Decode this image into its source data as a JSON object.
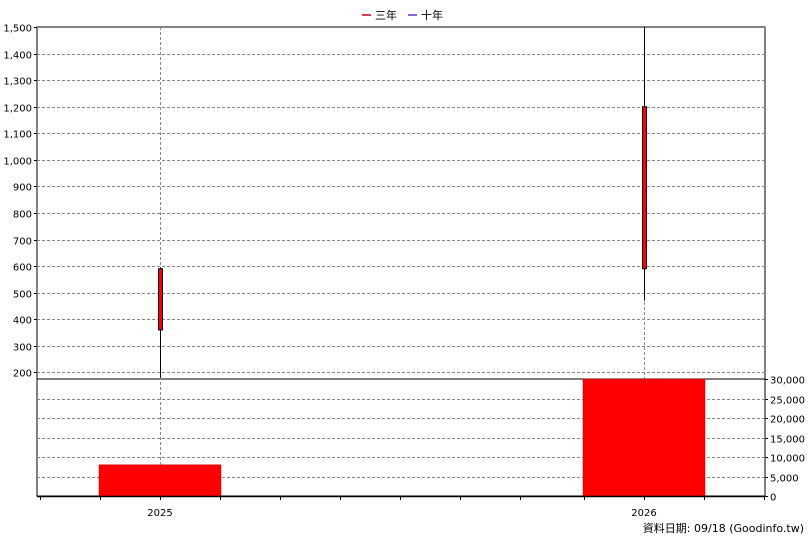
{
  "legend": [
    {
      "label": "三年",
      "color": "#cc0000"
    },
    {
      "label": "十年",
      "color": "#6633cc"
    }
  ],
  "footer": "資料日期: 09/18  (Goodinfo.tw)",
  "chart_data": [
    {
      "type": "candlestick",
      "categories": [
        "2025",
        "2026"
      ],
      "ylim": [
        175,
        1500
      ],
      "yticks": [
        "200",
        "300",
        "400",
        "500",
        "600",
        "700",
        "800",
        "900",
        "1,000",
        "1,100",
        "1,200",
        "1,300",
        "1,400",
        "1,500"
      ],
      "yvalues": [
        200,
        300,
        400,
        500,
        600,
        700,
        800,
        900,
        1000,
        1100,
        1200,
        1300,
        1400,
        1500
      ],
      "grid": true,
      "series": [
        {
          "category": "2025",
          "open": 360,
          "close": 590,
          "low": 180,
          "high": 595,
          "color": "#ff0000"
        },
        {
          "category": "2026",
          "open": 590,
          "close": 1200,
          "low": 470,
          "high": 1500,
          "color": "#ff0000"
        }
      ]
    },
    {
      "type": "bar",
      "categories": [
        "2025",
        "2026"
      ],
      "values": [
        8000,
        30000
      ],
      "ylim": [
        0,
        30000
      ],
      "yticks": [
        "0",
        "5,000",
        "10,000",
        "15,000",
        "20,000",
        "25,000",
        "30,000"
      ],
      "yvalues": [
        0,
        5000,
        10000,
        15000,
        20000,
        25000,
        30000
      ],
      "color": "#ff0000",
      "grid": true
    }
  ]
}
